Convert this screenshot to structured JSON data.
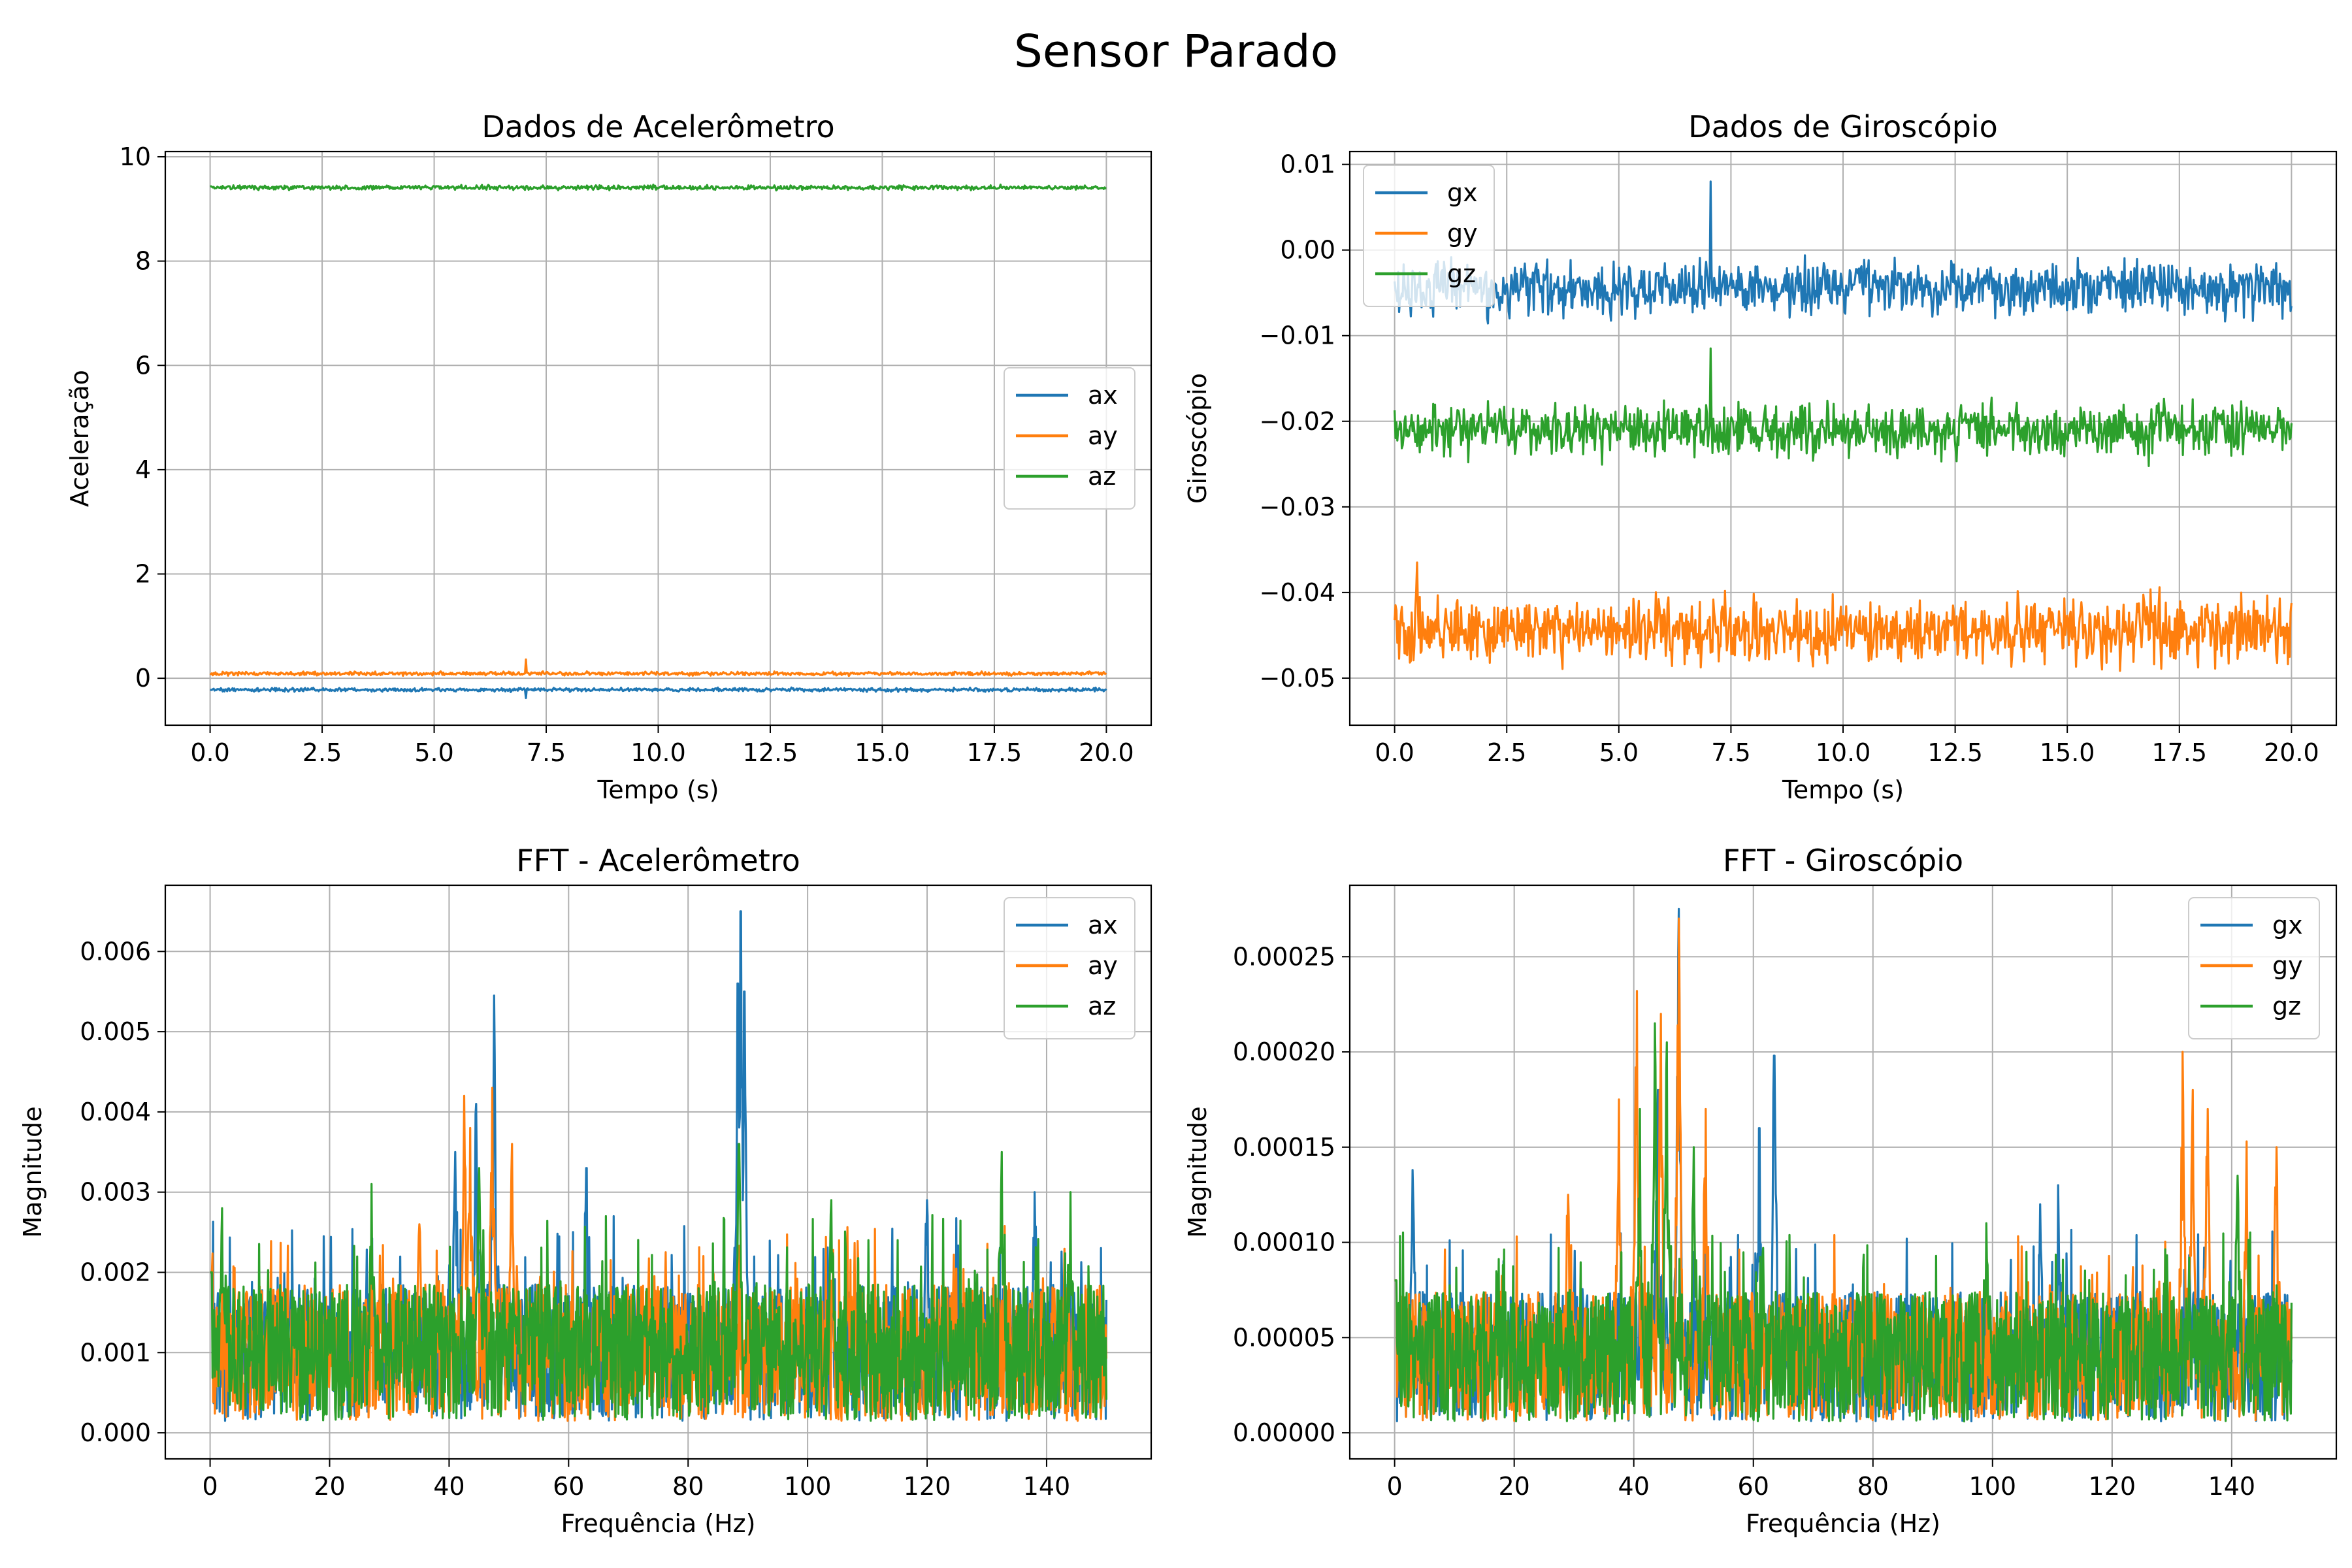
{
  "figure": {
    "suptitle": "Sensor Parado"
  },
  "chart_data": [
    {
      "id": "acc",
      "type": "line",
      "title": "Dados de Acelerômetro",
      "xlabel": "Tempo (s)",
      "ylabel": "Aceleração",
      "xlim": [
        -1.0,
        21.0
      ],
      "ylim": [
        -0.9,
        10.1
      ],
      "xticks": [
        0,
        2.5,
        5,
        7.5,
        10,
        12.5,
        15,
        17.5,
        20
      ],
      "xtick_labels": [
        "0.0",
        "2.5",
        "5.0",
        "7.5",
        "10.0",
        "12.5",
        "15.0",
        "17.5",
        "20.0"
      ],
      "yticks": [
        0,
        2,
        4,
        6,
        8,
        10
      ],
      "ytick_labels": [
        "0",
        "2",
        "4",
        "6",
        "8",
        "10"
      ],
      "grid": true,
      "legend": "center-right",
      "series": [
        {
          "name": "ax",
          "color": "#1f77b4",
          "pattern": "noise",
          "x_range": [
            0,
            20
          ],
          "n": 1000,
          "mean": -0.22,
          "amp": 0.05,
          "spikes": [
            [
              7.05,
              -0.38
            ]
          ]
        },
        {
          "name": "ay",
          "color": "#ff7f0e",
          "pattern": "noise",
          "x_range": [
            0,
            20
          ],
          "n": 1000,
          "mean": 0.09,
          "amp": 0.05,
          "spikes": [
            [
              7.05,
              0.36
            ]
          ]
        },
        {
          "name": "az",
          "color": "#2ca02c",
          "pattern": "noise",
          "x_range": [
            0,
            20
          ],
          "n": 1000,
          "mean": 9.41,
          "amp": 0.06,
          "spikes": []
        }
      ]
    },
    {
      "id": "gyro",
      "type": "line",
      "title": "Dados de Giroscópio",
      "xlabel": "Tempo (s)",
      "ylabel": "Giroscópio",
      "xlim": [
        -1.0,
        21.0
      ],
      "ylim": [
        -0.0555,
        0.0115
      ],
      "xticks": [
        0,
        2.5,
        5,
        7.5,
        10,
        12.5,
        15,
        17.5,
        20
      ],
      "xtick_labels": [
        "0.0",
        "2.5",
        "5.0",
        "7.5",
        "10.0",
        "12.5",
        "15.0",
        "17.5",
        "20.0"
      ],
      "yticks": [
        0.01,
        0,
        -0.01,
        -0.02,
        -0.03,
        -0.04,
        -0.05
      ],
      "ytick_labels": [
        "0.01",
        "0.00",
        "−0.01",
        "−0.02",
        "−0.03",
        "−0.04",
        "−0.05"
      ],
      "grid": true,
      "legend": "top-left",
      "series": [
        {
          "name": "gx",
          "color": "#1f77b4",
          "pattern": "noise",
          "x_range": [
            0,
            20
          ],
          "n": 1000,
          "mean": -0.0045,
          "amp": 0.0045,
          "spikes": [
            [
              7.05,
              0.008
            ]
          ]
        },
        {
          "name": "gy",
          "color": "#ff7f0e",
          "pattern": "noise",
          "x_range": [
            0,
            20
          ],
          "n": 1000,
          "mean": -0.0445,
          "amp": 0.0055,
          "spikes": [
            [
              0.5,
              -0.0365
            ]
          ]
        },
        {
          "name": "gz",
          "color": "#2ca02c",
          "pattern": "noise",
          "x_range": [
            0,
            20
          ],
          "n": 1000,
          "mean": -0.021,
          "amp": 0.0045,
          "spikes": [
            [
              7.05,
              -0.0115
            ]
          ]
        }
      ]
    },
    {
      "id": "fft-acc",
      "type": "line",
      "title": "FFT - Acelerômetro",
      "xlabel": "Frequência (Hz)",
      "ylabel": "Magnitude",
      "xlim": [
        -7.5,
        157.5
      ],
      "ylim": [
        -0.000325,
        0.006825
      ],
      "xticks": [
        0,
        20,
        40,
        60,
        80,
        100,
        120,
        140
      ],
      "xtick_labels": [
        "0",
        "20",
        "40",
        "60",
        "80",
        "100",
        "120",
        "140"
      ],
      "yticks": [
        0,
        0.001,
        0.002,
        0.003,
        0.004,
        0.005,
        0.006
      ],
      "ytick_labels": [
        "0.000",
        "0.001",
        "0.002",
        "0.003",
        "0.004",
        "0.005",
        "0.006"
      ],
      "grid": true,
      "legend": "top-right",
      "series": [
        {
          "name": "ax",
          "color": "#1f77b4",
          "pattern": "spectrum",
          "x_range": [
            0,
            150
          ],
          "n": 1500,
          "mean": 0.001,
          "amp": 0.0008,
          "peaks": [
            [
              47.5,
              0.00545
            ],
            [
              88.8,
              0.0065
            ],
            [
              88.3,
              0.0056
            ],
            [
              89.4,
              0.0055
            ],
            [
              44.5,
              0.0041
            ],
            [
              41.0,
              0.0035
            ],
            [
              63.0,
              0.0033
            ],
            [
              138.0,
              0.003
            ],
            [
              120.0,
              0.0029
            ]
          ]
        },
        {
          "name": "ay",
          "color": "#ff7f0e",
          "pattern": "spectrum",
          "x_range": [
            0,
            150
          ],
          "n": 1500,
          "mean": 0.001,
          "amp": 0.0007,
          "peaks": [
            [
              42.5,
              0.0042
            ],
            [
              47.2,
              0.0043
            ],
            [
              50.5,
              0.0036
            ],
            [
              43.5,
              0.0038
            ],
            [
              35.0,
              0.0026
            ]
          ]
        },
        {
          "name": "az",
          "color": "#2ca02c",
          "pattern": "spectrum",
          "x_range": [
            0,
            150
          ],
          "n": 1500,
          "mean": 0.001,
          "amp": 0.0008,
          "peaks": [
            [
              132.5,
              0.0035
            ],
            [
              2.0,
              0.0028
            ],
            [
              27.0,
              0.0031
            ],
            [
              45.0,
              0.0033
            ],
            [
              88.5,
              0.0036
            ],
            [
              104.0,
              0.0029
            ],
            [
              144.0,
              0.003
            ]
          ]
        }
      ]
    },
    {
      "id": "fft-gyro",
      "type": "line",
      "title": "FFT - Giroscópio",
      "xlabel": "Frequência (Hz)",
      "ylabel": "Magnitude",
      "xlim": [
        -7.5,
        157.5
      ],
      "ylim": [
        -1.37e-05,
        0.0002875
      ],
      "xticks": [
        0,
        20,
        40,
        60,
        80,
        100,
        120,
        140
      ],
      "xtick_labels": [
        "0",
        "20",
        "40",
        "60",
        "80",
        "100",
        "120",
        "140"
      ],
      "yticks": [
        0,
        5e-05,
        0.0001,
        0.00015,
        0.0002,
        0.00025
      ],
      "ytick_labels": [
        "0.00000",
        "0.00005",
        "0.00010",
        "0.00015",
        "0.00020",
        "0.00025"
      ],
      "grid": true,
      "legend": "top-right",
      "series": [
        {
          "name": "gx",
          "color": "#1f77b4",
          "pattern": "spectrum",
          "x_range": [
            0,
            150
          ],
          "n": 1500,
          "mean": 4e-05,
          "amp": 3e-05,
          "peaks": [
            [
              47.5,
              0.000275
            ],
            [
              3.0,
              0.000138
            ],
            [
              63.5,
              0.000198
            ],
            [
              108.0,
              0.00012
            ],
            [
              44.0,
              0.00018
            ],
            [
              61.0,
              0.00016
            ],
            [
              111.0,
              0.00013
            ]
          ]
        },
        {
          "name": "gy",
          "color": "#ff7f0e",
          "pattern": "spectrum",
          "x_range": [
            0,
            150
          ],
          "n": 1500,
          "mean": 4e-05,
          "amp": 2.8e-05,
          "peaks": [
            [
              47.5,
              0.00027
            ],
            [
              40.5,
              0.000232
            ],
            [
              44.5,
              0.00022
            ],
            [
              37.5,
              0.000175
            ],
            [
              131.8,
              0.0002
            ],
            [
              133.5,
              0.00018
            ],
            [
              136.0,
              0.00017
            ],
            [
              142.5,
              0.000153
            ],
            [
              147.5,
              0.00015
            ],
            [
              52.0,
              0.00017
            ],
            [
              29.0,
              0.000125
            ]
          ]
        },
        {
          "name": "gz",
          "color": "#2ca02c",
          "pattern": "spectrum",
          "x_range": [
            0,
            150
          ],
          "n": 1500,
          "mean": 4e-05,
          "amp": 3e-05,
          "peaks": [
            [
              43.5,
              0.000215
            ],
            [
              45.5,
              0.000205
            ],
            [
              41.0,
              0.00017
            ],
            [
              50.0,
              0.00015
            ],
            [
              141.0,
              0.000135
            ],
            [
              99.0,
              0.00011
            ]
          ]
        }
      ]
    }
  ]
}
